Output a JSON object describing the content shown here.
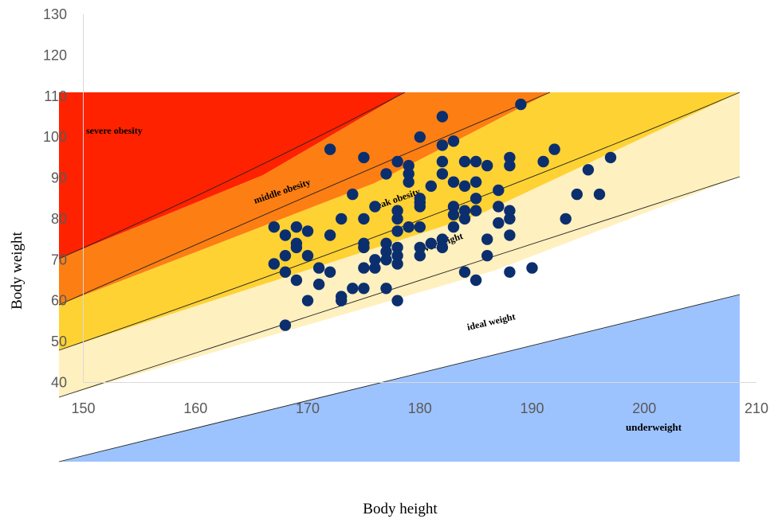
{
  "chart_data": {
    "type": "scatter",
    "title": "",
    "xlabel": "Body height",
    "ylabel": "Body weight",
    "xlim": [
      150,
      210
    ],
    "ylim": [
      40,
      130
    ],
    "x_ticks": [
      "150",
      "160",
      "170",
      "180",
      "190",
      "200",
      "210"
    ],
    "y_ticks": [
      "40",
      "50",
      "60",
      "70",
      "80",
      "90",
      "100",
      "110",
      "120",
      "130"
    ],
    "grid": false,
    "legend": "none",
    "zones": [
      {
        "name": "severe obesity",
        "color": "#ff2200"
      },
      {
        "name": "middle obesity",
        "color": "#fd7e12"
      },
      {
        "name": "weak obesity",
        "color": "#fed233"
      },
      {
        "name": "overweight",
        "color": "#fff0bf"
      },
      {
        "name": "ideal weight",
        "color": "#ffffff"
      },
      {
        "name": "underweight",
        "color": "#9dc3fe"
      }
    ],
    "marker_color": "#0b2f6e",
    "series": [
      {
        "points": [
          [
            167,
            78
          ],
          [
            167,
            69
          ],
          [
            168,
            76
          ],
          [
            168,
            71
          ],
          [
            168,
            67
          ],
          [
            168,
            54
          ],
          [
            169,
            78
          ],
          [
            169,
            74
          ],
          [
            169,
            73
          ],
          [
            169,
            65
          ],
          [
            170,
            77
          ],
          [
            170,
            71
          ],
          [
            170,
            60
          ],
          [
            171,
            68
          ],
          [
            171,
            64
          ],
          [
            172,
            97
          ],
          [
            172,
            76
          ],
          [
            172,
            67
          ],
          [
            173,
            80
          ],
          [
            173,
            61
          ],
          [
            173,
            60
          ],
          [
            174,
            86
          ],
          [
            174,
            63
          ],
          [
            175,
            95
          ],
          [
            175,
            80
          ],
          [
            175,
            74
          ],
          [
            175,
            73
          ],
          [
            175,
            68
          ],
          [
            175,
            63
          ],
          [
            176,
            83
          ],
          [
            176,
            70
          ],
          [
            176,
            68
          ],
          [
            177,
            91
          ],
          [
            177,
            74
          ],
          [
            177,
            72
          ],
          [
            177,
            70
          ],
          [
            177,
            63
          ],
          [
            178,
            94
          ],
          [
            178,
            82
          ],
          [
            178,
            80
          ],
          [
            178,
            77
          ],
          [
            178,
            73
          ],
          [
            178,
            71
          ],
          [
            178,
            69
          ],
          [
            178,
            60
          ],
          [
            179,
            93
          ],
          [
            179,
            91
          ],
          [
            179,
            89
          ],
          [
            179,
            78
          ],
          [
            180,
            100
          ],
          [
            180,
            85
          ],
          [
            180,
            84
          ],
          [
            180,
            83
          ],
          [
            180,
            78
          ],
          [
            180,
            73
          ],
          [
            180,
            71
          ],
          [
            181,
            88
          ],
          [
            181,
            74
          ],
          [
            182,
            105
          ],
          [
            182,
            98
          ],
          [
            182,
            94
          ],
          [
            182,
            91
          ],
          [
            182,
            75
          ],
          [
            182,
            73
          ],
          [
            183,
            99
          ],
          [
            183,
            89
          ],
          [
            183,
            83
          ],
          [
            183,
            81
          ],
          [
            183,
            78
          ],
          [
            184,
            94
          ],
          [
            184,
            88
          ],
          [
            184,
            82
          ],
          [
            184,
            80
          ],
          [
            184,
            67
          ],
          [
            185,
            94
          ],
          [
            185,
            89
          ],
          [
            185,
            85
          ],
          [
            185,
            82
          ],
          [
            185,
            65
          ],
          [
            186,
            93
          ],
          [
            186,
            75
          ],
          [
            186,
            71
          ],
          [
            187,
            87
          ],
          [
            187,
            83
          ],
          [
            187,
            79
          ],
          [
            188,
            95
          ],
          [
            188,
            93
          ],
          [
            188,
            82
          ],
          [
            188,
            80
          ],
          [
            188,
            76
          ],
          [
            188,
            67
          ],
          [
            189,
            108
          ],
          [
            190,
            68
          ],
          [
            191,
            94
          ],
          [
            192,
            97
          ],
          [
            193,
            80
          ],
          [
            194,
            86
          ],
          [
            195,
            92
          ],
          [
            196,
            86
          ],
          [
            197,
            95
          ]
        ]
      }
    ]
  }
}
